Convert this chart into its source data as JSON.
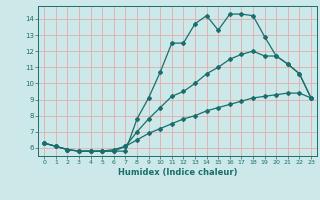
{
  "xlabel": "Humidex (Indice chaleur)",
  "bg_color": "#cce8e8",
  "grid_color": "#e8a0a0",
  "line_color": "#1a6e6e",
  "line1_x": [
    0,
    1,
    2,
    3,
    4,
    5,
    6,
    7,
    8,
    9,
    10,
    11,
    12,
    13,
    14,
    15,
    16,
    17,
    18,
    19,
    20,
    21,
    22,
    23
  ],
  "line1_y": [
    6.3,
    6.1,
    5.9,
    5.8,
    5.8,
    5.8,
    5.8,
    5.8,
    7.8,
    9.1,
    10.7,
    12.5,
    12.5,
    13.7,
    14.2,
    13.3,
    14.3,
    14.3,
    14.2,
    12.9,
    11.7,
    11.2,
    10.6,
    9.1
  ],
  "line2_x": [
    0,
    1,
    2,
    3,
    4,
    5,
    6,
    7,
    8,
    9,
    10,
    11,
    12,
    13,
    14,
    15,
    16,
    17,
    18,
    19,
    20,
    21,
    22,
    23
  ],
  "line2_y": [
    6.3,
    6.1,
    5.9,
    5.8,
    5.8,
    5.8,
    5.8,
    6.1,
    7.0,
    7.8,
    8.5,
    9.2,
    9.5,
    10.0,
    10.6,
    11.0,
    11.5,
    11.8,
    12.0,
    11.7,
    11.7,
    11.2,
    10.6,
    9.1
  ],
  "line3_x": [
    0,
    1,
    2,
    3,
    4,
    5,
    6,
    7,
    8,
    9,
    10,
    11,
    12,
    13,
    14,
    15,
    16,
    17,
    18,
    19,
    20,
    21,
    22,
    23
  ],
  "line3_y": [
    6.3,
    6.1,
    5.9,
    5.8,
    5.8,
    5.8,
    5.9,
    6.1,
    6.5,
    6.9,
    7.2,
    7.5,
    7.8,
    8.0,
    8.3,
    8.5,
    8.7,
    8.9,
    9.1,
    9.2,
    9.3,
    9.4,
    9.4,
    9.1
  ],
  "xlim": [
    -0.5,
    23.5
  ],
  "ylim": [
    5.5,
    14.8
  ],
  "yticks": [
    6,
    7,
    8,
    9,
    10,
    11,
    12,
    13,
    14
  ],
  "xticks": [
    0,
    1,
    2,
    3,
    4,
    5,
    6,
    7,
    8,
    9,
    10,
    11,
    12,
    13,
    14,
    15,
    16,
    17,
    18,
    19,
    20,
    21,
    22,
    23
  ]
}
